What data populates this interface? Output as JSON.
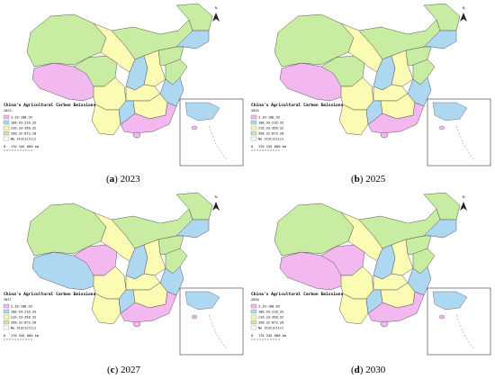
{
  "legend": {
    "title": "China's Agricultural Carbon Emissions",
    "classes": [
      {
        "label": "3.33-108.93",
        "color": "#f4b8f0"
      },
      {
        "label": "108.93-216.33",
        "color": "#aed8f2"
      },
      {
        "label": "216.33-358.32",
        "color": "#fbfbb4"
      },
      {
        "label": "358.32-873.28",
        "color": "#c8eca2"
      },
      {
        "label": "No Statistics",
        "color": "#ffffff"
      }
    ],
    "scale": {
      "zero": "0",
      "mid": "170 345",
      "end": "680 km"
    },
    "north": "N"
  },
  "panels": [
    {
      "letter": "a",
      "year": "2023",
      "fills": [
        "pink",
        "green",
        "green",
        "yellow",
        "yellow",
        "green",
        "yellow",
        "green",
        "blue",
        "green",
        "blue",
        "yellow",
        "yellow",
        "blue",
        "yellow",
        "green",
        "blue",
        "pink"
      ]
    },
    {
      "letter": "b",
      "year": "2025",
      "fills": [
        "pink",
        "green",
        "green",
        "yellow",
        "yellow",
        "green",
        "yellow",
        "green",
        "blue",
        "green",
        "blue",
        "yellow",
        "yellow",
        "blue",
        "yellow",
        "green",
        "blue",
        "pink"
      ]
    },
    {
      "letter": "c",
      "year": "2027",
      "fills": [
        "blue",
        "pink",
        "green",
        "yellow",
        "yellow",
        "green",
        "yellow",
        "green",
        "blue",
        "green",
        "blue",
        "yellow",
        "yellow",
        "blue",
        "yellow",
        "green",
        "blue",
        "pink"
      ]
    },
    {
      "letter": "d",
      "year": "2030",
      "fills": [
        "pink",
        "pink",
        "green",
        "yellow",
        "yellow",
        "green",
        "yellow",
        "green",
        "blue",
        "green",
        "blue",
        "yellow",
        "yellow",
        "blue",
        "yellow",
        "green",
        "blue",
        "pink"
      ]
    }
  ]
}
